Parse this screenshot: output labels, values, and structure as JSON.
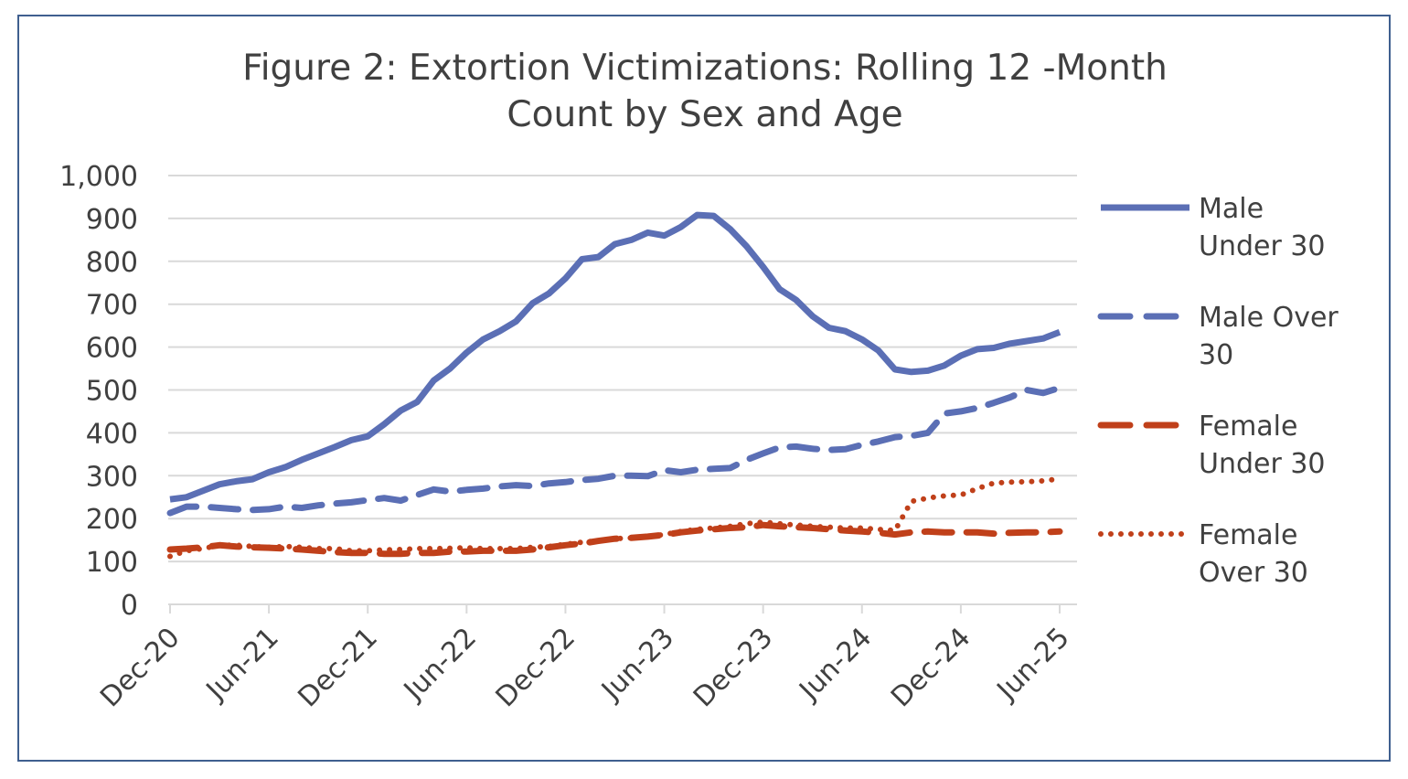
{
  "chart_data": {
    "type": "line",
    "title": "Figure 2: Extortion Victimizations: Rolling 12 -Month Count by Sex and Age",
    "title_lines": [
      "Figure 2: Extortion Victimizations: Rolling 12 -Month",
      "Count by Sex and Age"
    ],
    "xlabel": "",
    "ylabel": "",
    "ylim": [
      0,
      1000
    ],
    "y_ticks": [
      0,
      100,
      200,
      300,
      400,
      500,
      600,
      700,
      800,
      900,
      1000
    ],
    "y_tick_labels": [
      "0",
      "100",
      "200",
      "300",
      "400",
      "500",
      "600",
      "700",
      "800",
      "900",
      "1,000"
    ],
    "x_ticks": [
      "Dec-20",
      "Jun-21",
      "Dec-21",
      "Jun-22",
      "Dec-22",
      "Jun-23",
      "Dec-23",
      "Jun-24",
      "Dec-24",
      "Jun-25"
    ],
    "x": [
      "Dec-20",
      "Jan-21",
      "Feb-21",
      "Mar-21",
      "Apr-21",
      "May-21",
      "Jun-21",
      "Jul-21",
      "Aug-21",
      "Sep-21",
      "Oct-21",
      "Nov-21",
      "Dec-21",
      "Jan-22",
      "Feb-22",
      "Mar-22",
      "Apr-22",
      "May-22",
      "Jun-22",
      "Jul-22",
      "Aug-22",
      "Sep-22",
      "Oct-22",
      "Nov-22",
      "Dec-22",
      "Jan-23",
      "Feb-23",
      "Mar-23",
      "Apr-23",
      "May-23",
      "Jun-23",
      "Jul-23",
      "Aug-23",
      "Sep-23",
      "Oct-23",
      "Nov-23",
      "Dec-23",
      "Jan-24",
      "Feb-24",
      "Mar-24",
      "Apr-24",
      "May-24",
      "Jun-24",
      "Jul-24",
      "Aug-24",
      "Sep-24",
      "Oct-24",
      "Nov-24",
      "Dec-24",
      "Jan-25",
      "Feb-25",
      "Mar-25",
      "Apr-25",
      "May-25",
      "Jun-25"
    ],
    "grid": true,
    "legend_position": "right",
    "series": [
      {
        "name": "Male Under 30",
        "legend_lines": [
          "Male",
          "Under 30"
        ],
        "color": "#5b6fb5",
        "style": "solid",
        "values": [
          245,
          250,
          265,
          280,
          287,
          292,
          308,
          320,
          337,
          352,
          367,
          383,
          392,
          420,
          452,
          472,
          522,
          550,
          587,
          618,
          637,
          660,
          702,
          725,
          760,
          805,
          810,
          840,
          850,
          867,
          860,
          880,
          908,
          906,
          875,
          835,
          787,
          735,
          710,
          672,
          645,
          637,
          618,
          592,
          548,
          542,
          545,
          557,
          580,
          595,
          598,
          608,
          614,
          620,
          635
        ]
      },
      {
        "name": "Male Over 30",
        "legend_lines": [
          "Male Over",
          "30"
        ],
        "color": "#5b6fb5",
        "style": "dash",
        "values": [
          213,
          228,
          228,
          225,
          222,
          220,
          222,
          228,
          225,
          231,
          235,
          238,
          243,
          248,
          242,
          255,
          268,
          263,
          267,
          270,
          275,
          278,
          276,
          282,
          285,
          290,
          293,
          300,
          300,
          299,
          313,
          308,
          314,
          316,
          318,
          337,
          352,
          366,
          368,
          363,
          360,
          362,
          372,
          380,
          390,
          393,
          400,
          445,
          450,
          458,
          470,
          483,
          500,
          493,
          505
        ]
      },
      {
        "name": "Female Under 30",
        "legend_lines": [
          "Female",
          "Under 30"
        ],
        "color": "#c0401a",
        "style": "dash",
        "values": [
          128,
          130,
          133,
          138,
          135,
          133,
          132,
          130,
          128,
          125,
          122,
          120,
          120,
          118,
          118,
          120,
          120,
          123,
          123,
          125,
          125,
          125,
          128,
          133,
          138,
          142,
          148,
          153,
          155,
          158,
          162,
          168,
          172,
          175,
          178,
          180,
          185,
          182,
          180,
          178,
          175,
          172,
          170,
          167,
          163,
          168,
          170,
          168,
          168,
          168,
          165,
          167,
          168,
          168,
          170
        ]
      },
      {
        "name": "Female Over 30",
        "legend_lines": [
          "Female",
          "Over 30"
        ],
        "color": "#c0401a",
        "style": "dot",
        "values": [
          112,
          125,
          130,
          138,
          138,
          135,
          133,
          135,
          133,
          130,
          130,
          125,
          125,
          127,
          128,
          130,
          130,
          131,
          132,
          130,
          130,
          130,
          133,
          135,
          140,
          145,
          148,
          153,
          155,
          158,
          163,
          170,
          175,
          178,
          182,
          188,
          192,
          188,
          185,
          182,
          180,
          178,
          178,
          175,
          172,
          240,
          248,
          253,
          255,
          270,
          283,
          285,
          286,
          288,
          293
        ]
      }
    ]
  }
}
